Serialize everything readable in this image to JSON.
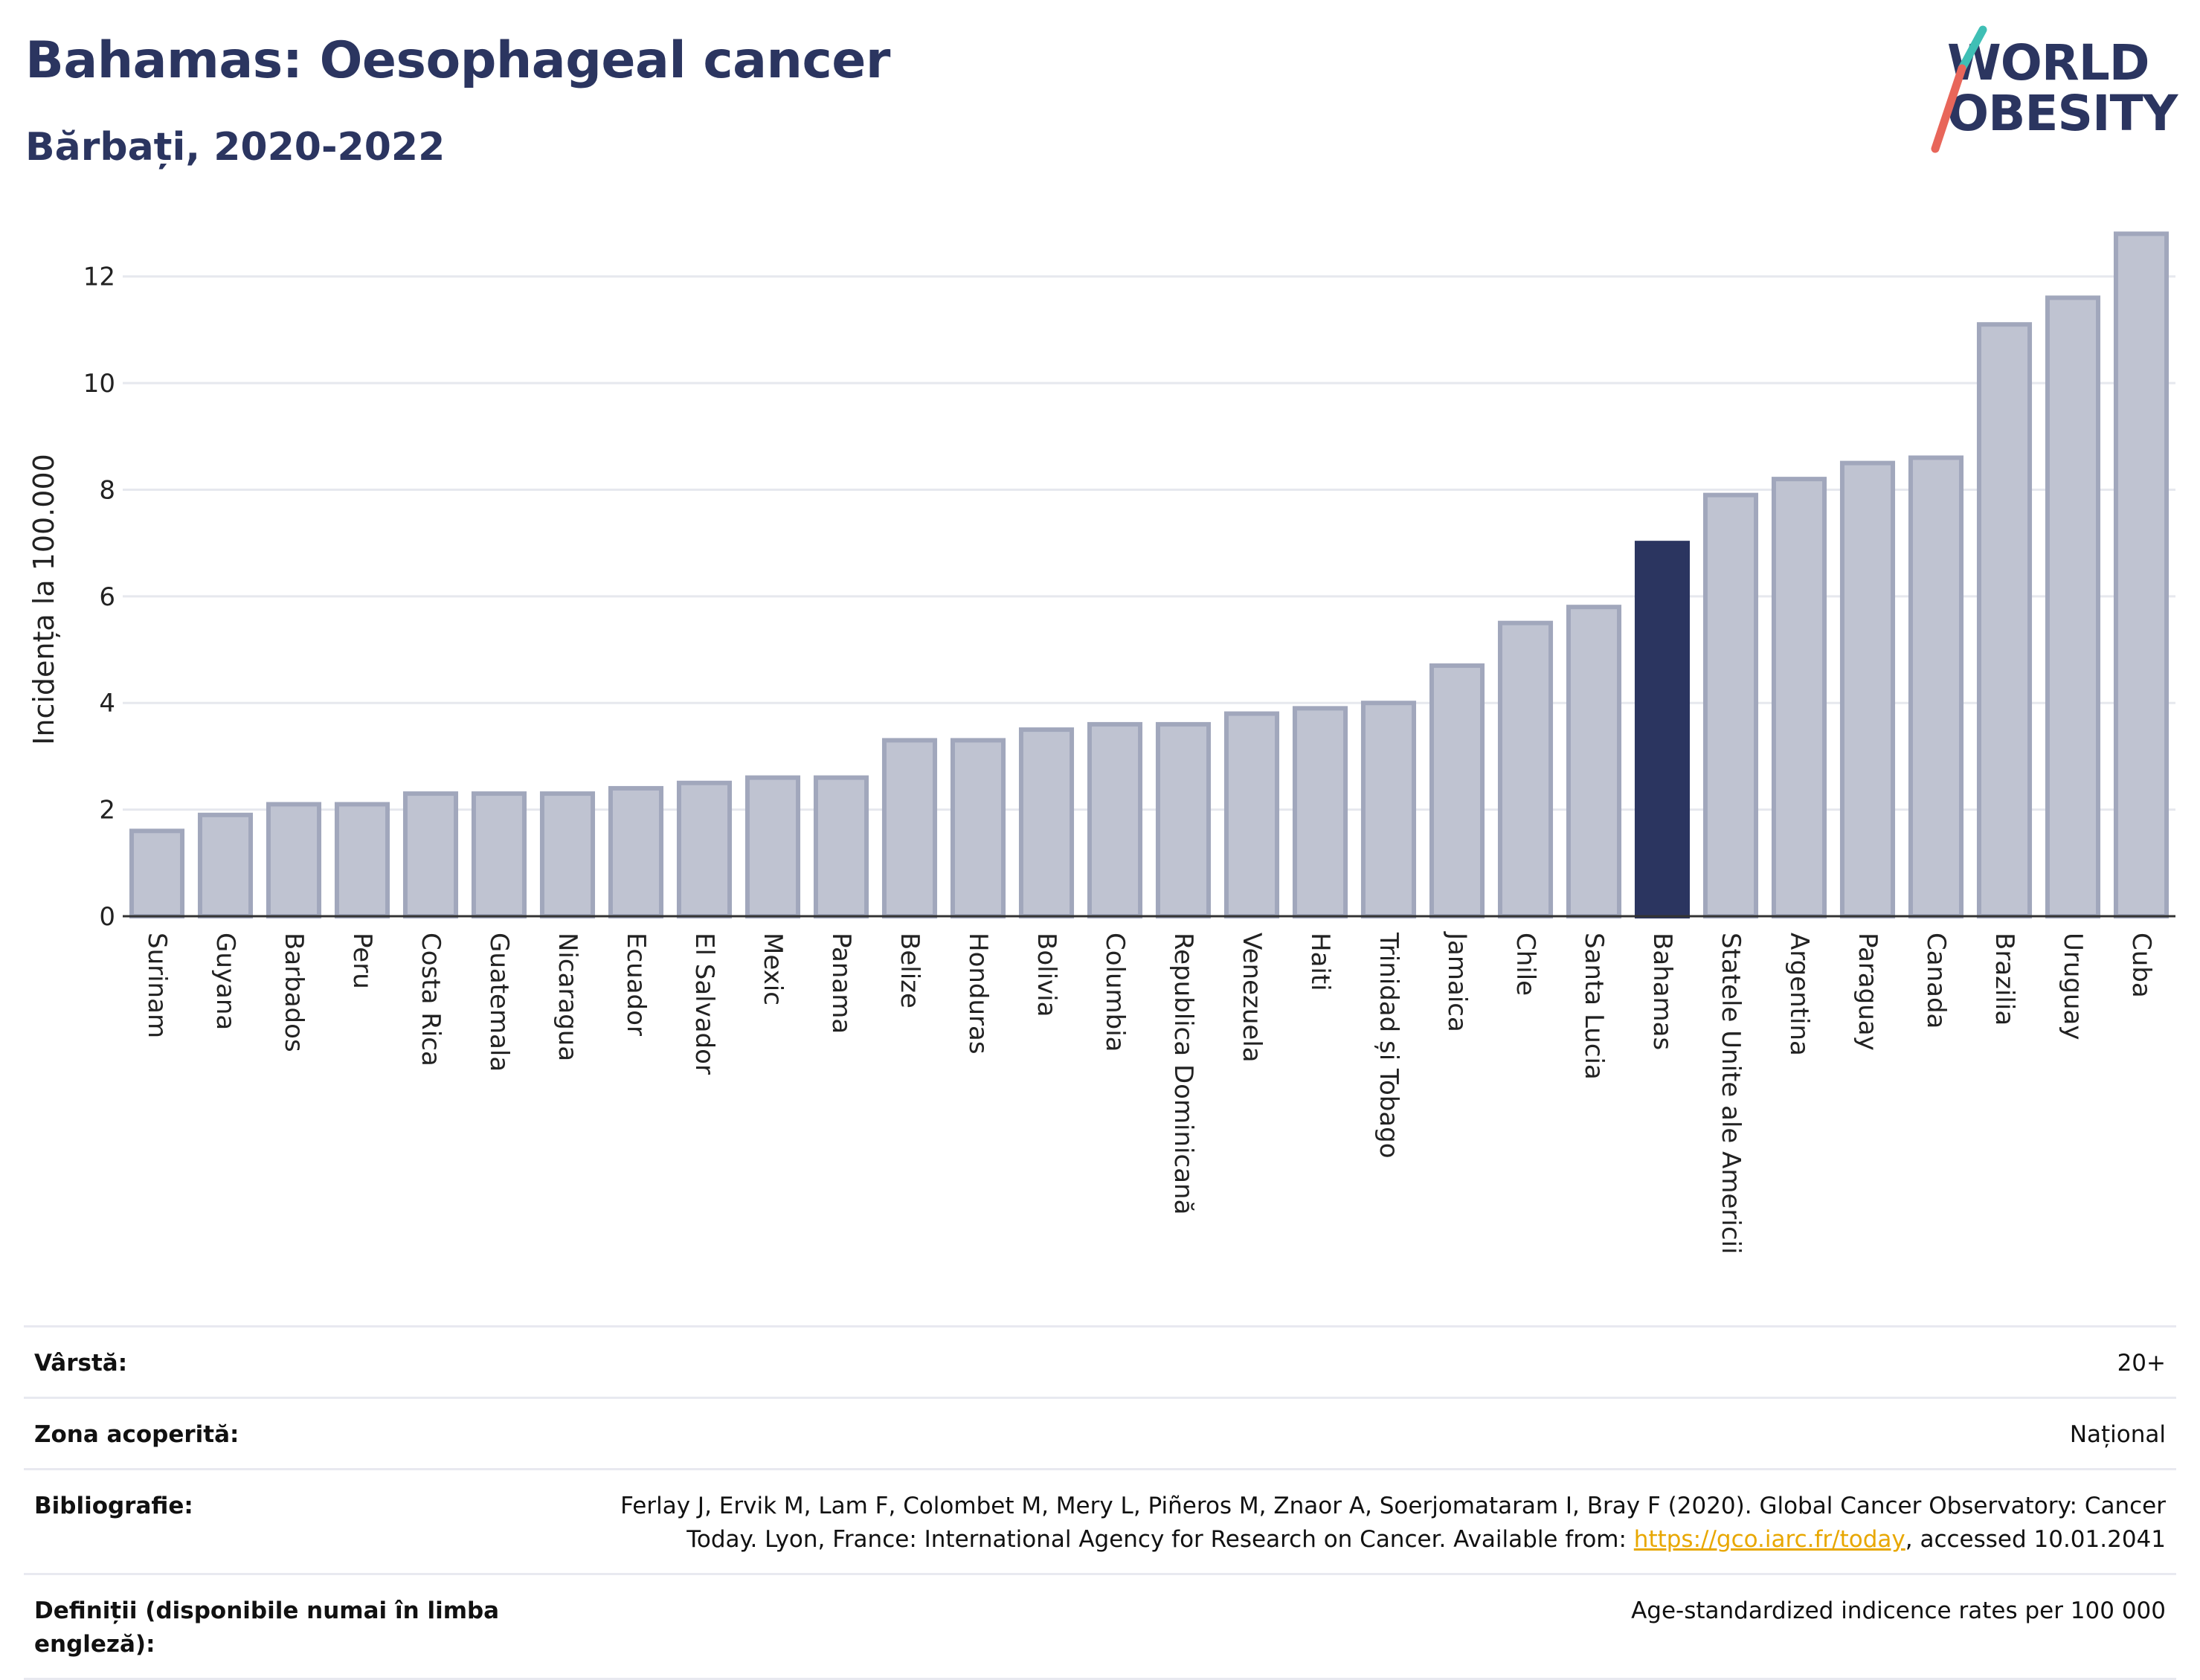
{
  "header": {
    "title": "Bahamas: Oesophageal cancer",
    "subtitle": "Bărbați, 2020-2022"
  },
  "logo": {
    "line1": "WORLD",
    "line2": "OBESITY"
  },
  "colors": {
    "bar": "#bfc3d1",
    "bar_border": "#a1a7bc",
    "highlight": "#2b3560",
    "grid": "#e6e8ee",
    "title": "#2b3560",
    "link": "#e8a700",
    "logo_slash_teal": "#3fbfb5",
    "logo_slash_red": "#e8665a"
  },
  "chart_data": {
    "type": "bar",
    "ylabel": "Incidența la 100.000",
    "xlabel": "",
    "ylim": [
      0,
      13
    ],
    "yticks": [
      0,
      2,
      4,
      6,
      8,
      10,
      12
    ],
    "grid": true,
    "highlight": "Bahamas",
    "categories": [
      "Surinam",
      "Guyana",
      "Barbados",
      "Peru",
      "Costa Rica",
      "Guatemala",
      "Nicaragua",
      "Ecuador",
      "El Salvador",
      "Mexic",
      "Panama",
      "Belize",
      "Honduras",
      "Bolivia",
      "Columbia",
      "Republica Dominicană",
      "Venezuela",
      "Haiti",
      "Trinidad și Tobago",
      "Jamaica",
      "Chile",
      "Santa Lucia",
      "Bahamas",
      "Statele Unite ale Americii",
      "Argentina",
      "Paraguay",
      "Canada",
      "Brazilia",
      "Uruguay",
      "Cuba"
    ],
    "values": [
      1.6,
      1.9,
      2.1,
      2.1,
      2.3,
      2.3,
      2.3,
      2.4,
      2.5,
      2.6,
      2.6,
      3.3,
      3.3,
      3.5,
      3.6,
      3.6,
      3.8,
      3.9,
      4.0,
      4.7,
      5.5,
      5.8,
      7.0,
      7.9,
      8.2,
      8.5,
      8.6,
      11.1,
      11.6,
      12.8
    ]
  },
  "meta": {
    "age_label": "Vârstă:",
    "age_value": "20+",
    "zone_label": "Zona acoperită:",
    "zone_value": "Național",
    "biblio_label": "Bibliografie:",
    "biblio_text1": "Ferlay J, Ervik M, Lam F, Colombet M, Mery L, Piñeros M, Znaor A, Soerjomataram I, Bray F (2020). Global Cancer Observatory: Cancer",
    "biblio_text2": "Today. Lyon, France: International Agency for Research on Cancer. Available from: ",
    "biblio_link": "https://gco.iarc.fr/today",
    "biblio_text3": ", accessed 10.01.2041",
    "def_label": "Definiții (disponibile numai în limba engleză):",
    "def_value": "Age-standardized indicence rates per 100 000"
  }
}
